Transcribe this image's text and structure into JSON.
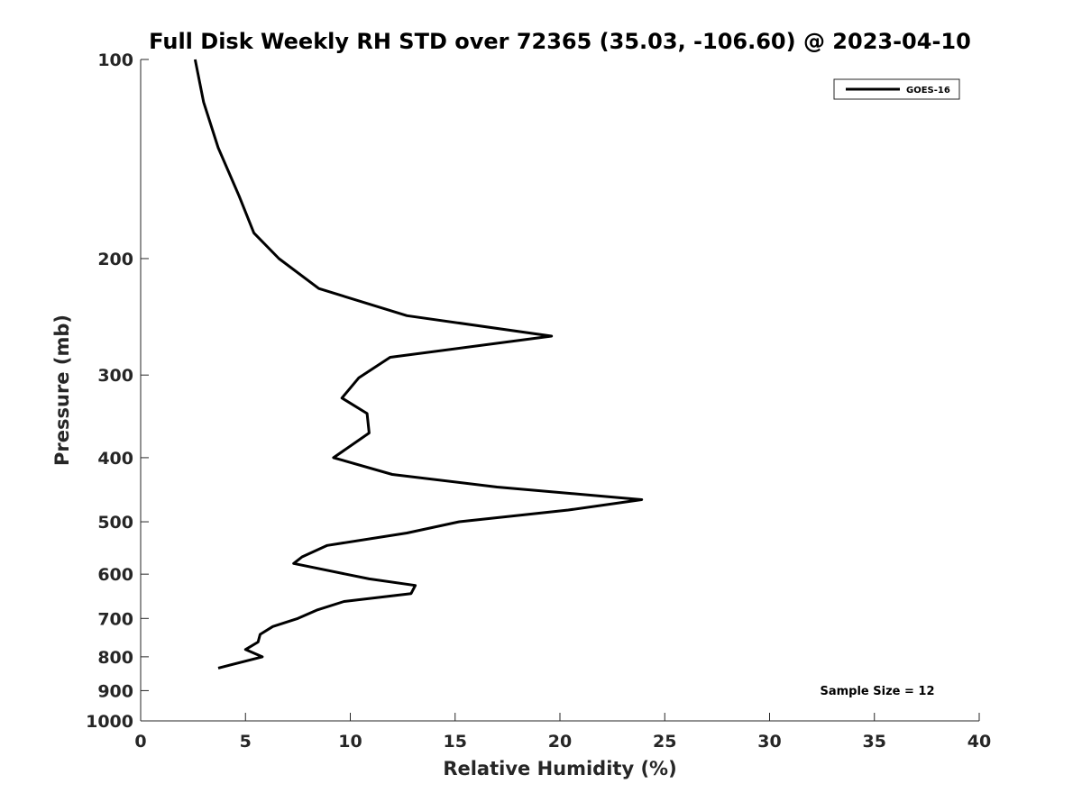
{
  "chart_data": {
    "type": "line",
    "title": "Full Disk Weekly RH STD over 72365 (35.03, -106.60) @ 2023-04-10",
    "xlabel": "Relative Humidity (%)",
    "ylabel": "Pressure (mb)",
    "xlim": [
      0,
      40
    ],
    "ylim": [
      100,
      1000
    ],
    "yscale": "log",
    "y_reversed": true,
    "grid": false,
    "legend_position": "top-right",
    "x_ticks": [
      "0",
      "5",
      "10",
      "15",
      "20",
      "25",
      "30",
      "35",
      "40"
    ],
    "y_ticks": [
      "100",
      "200",
      "300",
      "400",
      "500",
      "600",
      "700",
      "800",
      "900",
      "1000"
    ],
    "series": [
      {
        "name": "GOES-16",
        "color": "#000000",
        "x": [
          2.6,
          3.0,
          3.7,
          4.7,
          5.4,
          6.6,
          8.5,
          12.7,
          19.6,
          11.9,
          10.4,
          9.6,
          10.8,
          10.9,
          9.2,
          12.0,
          17.0,
          23.9,
          20.4,
          15.2,
          12.7,
          8.9,
          7.7,
          7.3,
          10.9,
          13.1,
          12.9,
          9.7,
          8.4,
          7.5,
          6.3,
          5.7,
          5.6,
          5.0,
          5.8,
          3.7
        ],
        "y": [
          100,
          116,
          136,
          161,
          183,
          200,
          222,
          244,
          262,
          282,
          303,
          325,
          343,
          367,
          400,
          424,
          443,
          463,
          480,
          500,
          520,
          543,
          565,
          578,
          610,
          624,
          642,
          660,
          680,
          700,
          720,
          740,
          760,
          780,
          800,
          832
        ]
      }
    ],
    "annotation": "Sample Size = 12"
  }
}
